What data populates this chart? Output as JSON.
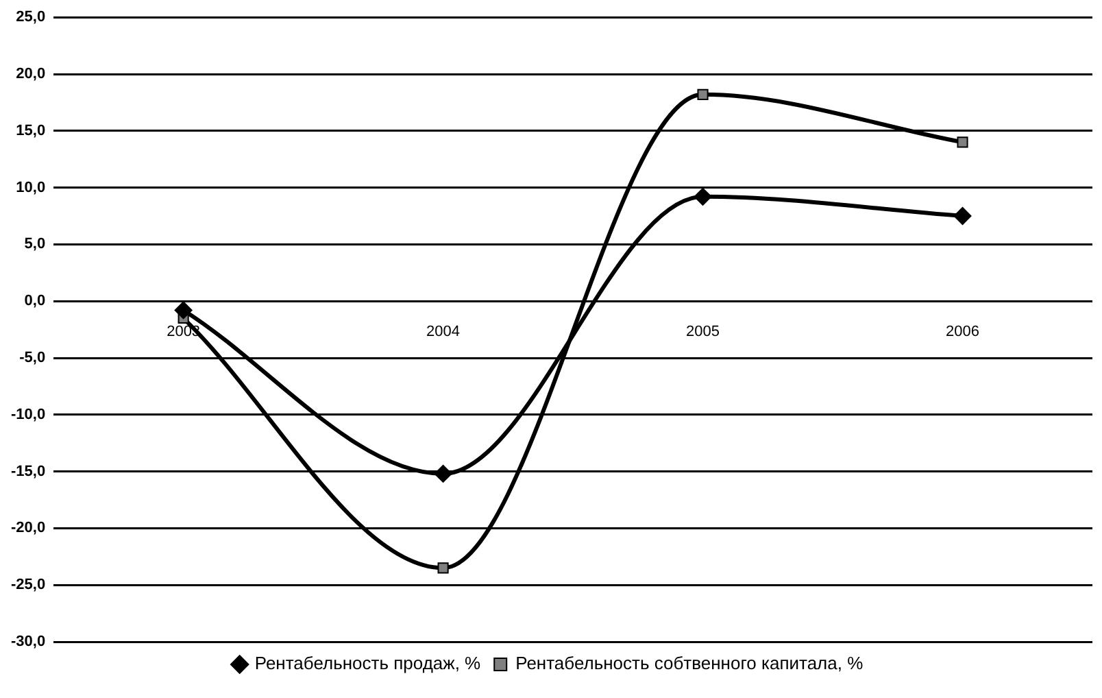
{
  "chart_data": {
    "type": "line",
    "categories": [
      "2003",
      "2004",
      "2005",
      "2006"
    ],
    "series": [
      {
        "name": "Рентабельность продаж, %",
        "color": "#000000",
        "marker": "diamond",
        "values": [
          -0.8,
          -15.2,
          9.2,
          7.5
        ]
      },
      {
        "name": "Рентабельность собтвенного капитала, %",
        "color": "#808080",
        "marker": "square",
        "values": [
          -1.5,
          -23.5,
          18.2,
          14.0
        ]
      }
    ],
    "ylim": [
      -30,
      25
    ],
    "yticks": [
      {
        "value": -30,
        "label": "-30,0"
      },
      {
        "value": -25,
        "label": "-25,0"
      },
      {
        "value": -20,
        "label": "-20,0"
      },
      {
        "value": -15,
        "label": "-15,0"
      },
      {
        "value": -10,
        "label": "-10,0"
      },
      {
        "value": -5,
        "label": "-5,0"
      },
      {
        "value": 0,
        "label": "0,0"
      },
      {
        "value": 5,
        "label": "5,0"
      },
      {
        "value": 10,
        "label": "10,0"
      },
      {
        "value": 15,
        "label": "15,0"
      },
      {
        "value": 20,
        "label": "20,0"
      },
      {
        "value": 25,
        "label": "25,0"
      }
    ],
    "grid": "y",
    "legend": "bottom"
  }
}
